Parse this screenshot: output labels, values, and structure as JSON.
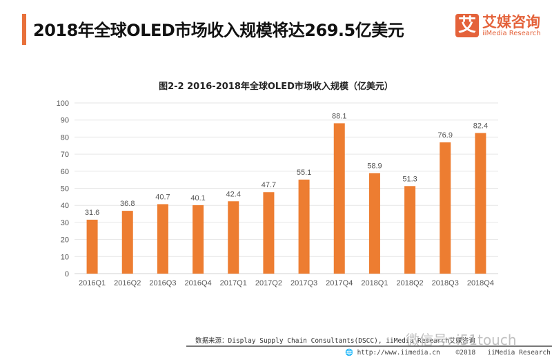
{
  "header": {
    "title": "2018年全球OLED市场收入规模将达269.5亿美元",
    "accent_color": "#e8703a"
  },
  "logo": {
    "mark": "艾",
    "cn": "艾媒咨询",
    "en": "iiMedia Research"
  },
  "chart_data": {
    "type": "bar",
    "title": "图2-2 2016-2018年全球OLED市场收入规模（亿美元）",
    "categories": [
      "2016Q1",
      "2016Q2",
      "2016Q3",
      "2016Q4",
      "2017Q1",
      "2017Q2",
      "2017Q3",
      "2017Q4",
      "2018Q1",
      "2018Q2",
      "2018Q3",
      "2018Q4"
    ],
    "values": [
      31.6,
      36.8,
      40.7,
      40.1,
      42.4,
      47.7,
      55.1,
      88.1,
      58.9,
      51.3,
      76.9,
      82.4
    ],
    "labels": [
      "31.6",
      "36.8",
      "40.7",
      "40.1",
      "42.4",
      "47.7",
      "55.1",
      "88.1",
      "58.9",
      "51.3",
      "76.9",
      "82.4"
    ],
    "yticks": [
      "0",
      "10",
      "20",
      "30",
      "40",
      "50",
      "60",
      "70",
      "80",
      "90",
      "100"
    ],
    "ylim": [
      0,
      100
    ],
    "grid": true,
    "bar_color": "#ed7d31"
  },
  "source": "数据来源：Display Supply Chain Consultants(DSCC), iiMedia Research艾媒咨询",
  "watermark": "微信号: i51touch",
  "footer": {
    "url": "http://www.iimedia.cn",
    "year": "©2018",
    "company": "iiMedia Research Inc"
  }
}
